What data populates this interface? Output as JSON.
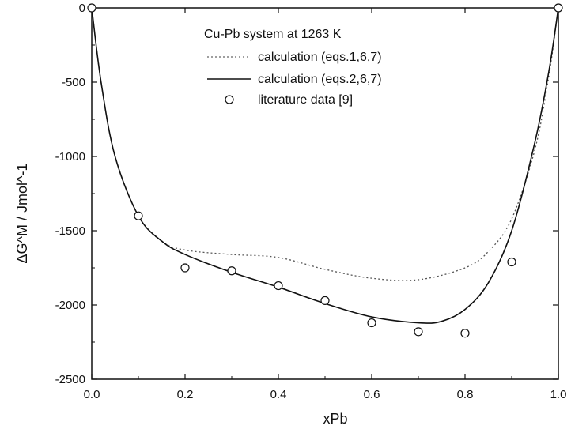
{
  "chart_data": {
    "type": "line",
    "title": "Cu-Pb system at 1263 K",
    "xlabel": "xPb",
    "ylabel": "ΔG^M / Jmol^-1",
    "xlim": [
      0,
      1
    ],
    "ylim": [
      -2500,
      0
    ],
    "x_ticks": [
      "0.0",
      "0.2",
      "0.4",
      "0.6",
      "0.8",
      "1.0"
    ],
    "y_ticks": [
      "0",
      "-500",
      "-1000",
      "-1500",
      "-2000",
      "-2500"
    ],
    "legend_position": "top-right",
    "series": [
      {
        "name": "calculation (eqs.1,6,7)",
        "style": "dotted",
        "x": [
          0,
          0.02,
          0.05,
          0.1,
          0.15,
          0.2,
          0.3,
          0.4,
          0.5,
          0.6,
          0.7,
          0.8,
          0.85,
          0.9,
          0.95,
          0.98,
          1.0
        ],
        "y": [
          0,
          -500,
          -1000,
          -1400,
          -1570,
          -1630,
          -1660,
          -1680,
          -1760,
          -1820,
          -1830,
          -1750,
          -1640,
          -1420,
          -950,
          -450,
          0
        ]
      },
      {
        "name": "calculation (eqs.2,6,7)",
        "style": "solid",
        "x": [
          0,
          0.02,
          0.05,
          0.1,
          0.15,
          0.2,
          0.3,
          0.4,
          0.5,
          0.6,
          0.7,
          0.75,
          0.8,
          0.85,
          0.9,
          0.95,
          0.98,
          1.0
        ],
        "y": [
          0,
          -500,
          -1000,
          -1400,
          -1570,
          -1660,
          -1780,
          -1880,
          -1990,
          -2080,
          -2120,
          -2110,
          -2030,
          -1850,
          -1500,
          -900,
          -420,
          0
        ]
      },
      {
        "name": "literature data [9]",
        "style": "markers",
        "x": [
          0.0,
          0.1,
          0.2,
          0.3,
          0.4,
          0.5,
          0.6,
          0.7,
          0.8,
          0.9,
          1.0
        ],
        "y": [
          0,
          -1400,
          -1750,
          -1770,
          -1870,
          -1970,
          -2120,
          -2180,
          -2190,
          -1710,
          0
        ]
      }
    ]
  }
}
